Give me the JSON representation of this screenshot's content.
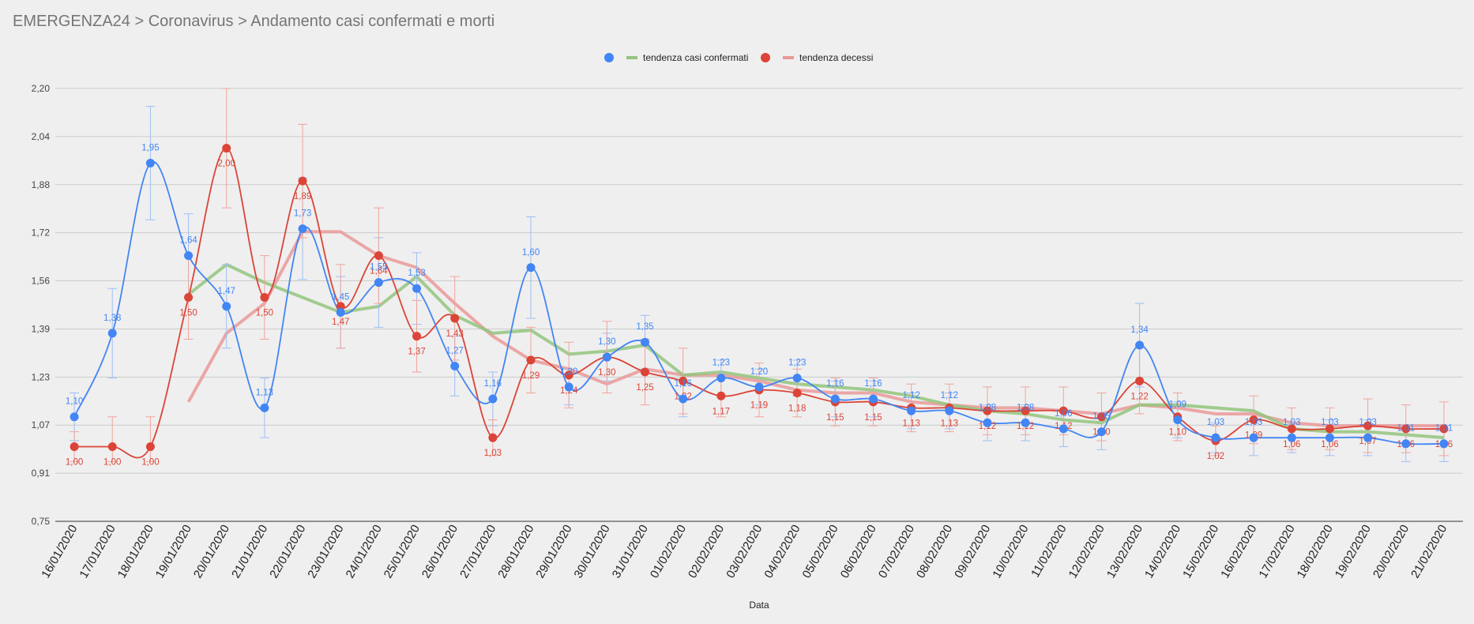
{
  "page_title": "EMERGENZA24 > Coronavirus > Andamento casi confermati e morti",
  "chart_data": {
    "type": "line",
    "xlabel": "Data",
    "ylabel": "",
    "ylim": [
      0.75,
      2.2
    ],
    "yticks": [
      "0,75",
      "0,91",
      "1,07",
      "1,23",
      "1,39",
      "1,56",
      "1,72",
      "1,88",
      "2,04",
      "2,20"
    ],
    "grid": true,
    "legend_position": "top-center",
    "categories": [
      "16/01/2020",
      "17/01/2020",
      "18/01/2020",
      "19/01/2020",
      "20/01/2020",
      "21/01/2020",
      "22/01/2020",
      "23/01/2020",
      "24/01/2020",
      "25/01/2020",
      "26/01/2020",
      "27/01/2020",
      "28/01/2020",
      "29/01/2020",
      "30/01/2020",
      "31/01/2020",
      "01/02/2020",
      "02/02/2020",
      "03/02/2020",
      "04/02/2020",
      "05/02/2020",
      "06/02/2020",
      "07/02/2020",
      "08/02/2020",
      "09/02/2020",
      "10/02/2020",
      "11/02/2020",
      "12/02/2020",
      "13/02/2020",
      "14/02/2020",
      "15/02/2020",
      "16/02/2020",
      "17/02/2020",
      "18/02/2020",
      "19/02/2020",
      "20/02/2020",
      "21/02/2020"
    ],
    "series": [
      {
        "name": "casi confermati",
        "color": "#4285f4",
        "values": [
          1.1,
          1.38,
          1.95,
          1.64,
          1.47,
          1.13,
          1.73,
          1.45,
          1.55,
          1.53,
          1.27,
          1.16,
          1.6,
          1.2,
          1.3,
          1.35,
          1.16,
          1.23,
          1.2,
          1.23,
          1.16,
          1.16,
          1.12,
          1.12,
          1.08,
          1.08,
          1.06,
          1.05,
          1.34,
          1.09,
          1.03,
          1.03,
          1.03,
          1.03,
          1.03,
          1.01,
          1.01
        ],
        "labels": [
          "1,10",
          "1,38",
          "1,95",
          "1,64",
          "1,47",
          "1,13",
          "1,73",
          "1,45",
          "1,55",
          "1,53",
          "1,27",
          "1,16",
          "1,60",
          "1,20",
          "1,30",
          "1,35",
          "1,16",
          "1,23",
          "1,20",
          "1,23",
          "1,16",
          "1,16",
          "1,12",
          "1,12",
          "1,08",
          "1,08",
          "1,06",
          "1,05",
          "1,34",
          "1,09",
          "1,03",
          "1,03",
          "1,03",
          "1,03",
          "1,03",
          "1,01",
          "1,01"
        ]
      },
      {
        "name": "decessi",
        "color": "#db4437",
        "values": [
          1.0,
          1.0,
          1.0,
          1.5,
          2.0,
          1.5,
          1.89,
          1.47,
          1.64,
          1.37,
          1.43,
          1.03,
          1.29,
          1.24,
          1.3,
          1.25,
          1.22,
          1.17,
          1.19,
          1.18,
          1.15,
          1.15,
          1.13,
          1.13,
          1.12,
          1.12,
          1.12,
          1.1,
          1.22,
          1.1,
          1.02,
          1.09,
          1.06,
          1.06,
          1.07,
          1.06,
          1.06
        ],
        "labels": [
          "1,00",
          "1,00",
          "1,00",
          "1,50",
          "2,00",
          "1,50",
          "1,89",
          "1,47",
          "1,64",
          "1,37",
          "1,43",
          "1,03",
          "1,29",
          "1,24",
          "1,30",
          "1,25",
          "1,22",
          "1,17",
          "1,19",
          "1,18",
          "1,15",
          "1,15",
          "1,13",
          "1,13",
          "1,12",
          "1,12",
          "1,12",
          "1,10",
          "1,22",
          "1,10",
          "1,02",
          "1,09",
          "1,06",
          "1,06",
          "1,07",
          "1,06",
          "1,06"
        ]
      },
      {
        "name": "tendenza casi confermati",
        "color": "#93c47d",
        "values": [
          null,
          null,
          null,
          1.51,
          1.61,
          1.55,
          1.5,
          1.45,
          1.47,
          1.57,
          1.44,
          1.38,
          1.39,
          1.31,
          1.32,
          1.34,
          1.24,
          1.25,
          1.23,
          1.21,
          1.2,
          1.19,
          1.17,
          1.14,
          1.12,
          1.11,
          1.09,
          1.08,
          1.14,
          1.14,
          1.13,
          1.12,
          1.06,
          1.05,
          1.05,
          1.04,
          1.03
        ]
      },
      {
        "name": "tendenza decessi",
        "color": "#ea9999",
        "values": [
          null,
          null,
          null,
          1.15,
          1.38,
          1.48,
          1.72,
          1.72,
          1.64,
          1.6,
          1.48,
          1.37,
          1.29,
          1.26,
          1.21,
          1.26,
          1.24,
          1.24,
          1.22,
          1.19,
          1.18,
          1.18,
          1.15,
          1.14,
          1.13,
          1.13,
          1.12,
          1.11,
          1.14,
          1.13,
          1.11,
          1.11,
          1.08,
          1.07,
          1.07,
          1.07,
          1.07
        ]
      }
    ],
    "error_bars": [
      {
        "series": "casi confermati",
        "low": [
          1.02,
          1.23,
          1.76,
          1.5,
          1.33,
          1.03,
          1.56,
          1.33,
          1.4,
          1.41,
          1.17,
          1.07,
          1.43,
          1.14,
          1.22,
          1.26,
          1.1,
          1.17,
          1.14,
          1.17,
          1.1,
          1.1,
          1.06,
          1.06,
          1.02,
          1.02,
          1.0,
          0.99,
          1.2,
          1.03,
          0.98,
          0.97,
          0.98,
          0.97,
          0.97,
          0.95,
          0.95
        ],
        "high": [
          1.18,
          1.53,
          2.14,
          1.78,
          1.61,
          1.23,
          1.9,
          1.57,
          1.7,
          1.65,
          1.37,
          1.25,
          1.77,
          1.26,
          1.38,
          1.44,
          1.22,
          1.29,
          1.26,
          1.29,
          1.22,
          1.22,
          1.18,
          1.18,
          1.14,
          1.14,
          1.12,
          1.11,
          1.48,
          1.15,
          1.08,
          1.09,
          1.08,
          1.09,
          1.09,
          1.07,
          1.07
        ]
      },
      {
        "series": "decessi",
        "low": [
          0.95,
          0.95,
          0.95,
          1.36,
          1.8,
          1.36,
          1.7,
          1.33,
          1.48,
          1.25,
          1.29,
          0.97,
          1.18,
          1.13,
          1.18,
          1.14,
          1.11,
          1.1,
          1.1,
          1.1,
          1.07,
          1.07,
          1.05,
          1.05,
          1.04,
          1.04,
          1.04,
          1.02,
          1.11,
          1.02,
          0.97,
          1.01,
          0.99,
          0.99,
          0.98,
          0.98,
          0.97
        ],
        "high": [
          1.05,
          1.1,
          1.1,
          1.64,
          2.2,
          1.64,
          2.08,
          1.61,
          1.8,
          1.49,
          1.57,
          1.09,
          1.4,
          1.35,
          1.42,
          1.36,
          1.33,
          1.24,
          1.28,
          1.26,
          1.23,
          1.23,
          1.21,
          1.21,
          1.2,
          1.2,
          1.2,
          1.18,
          1.33,
          1.18,
          1.07,
          1.17,
          1.13,
          1.13,
          1.16,
          1.14,
          1.15
        ]
      }
    ],
    "legend": [
      {
        "label": "tendenza casi confermati",
        "dot_color": "#4285f4",
        "line_color": "#93c47d"
      },
      {
        "label": "tendenza decessi",
        "dot_color": "#db4437",
        "line_color": "#ea9999"
      }
    ]
  }
}
